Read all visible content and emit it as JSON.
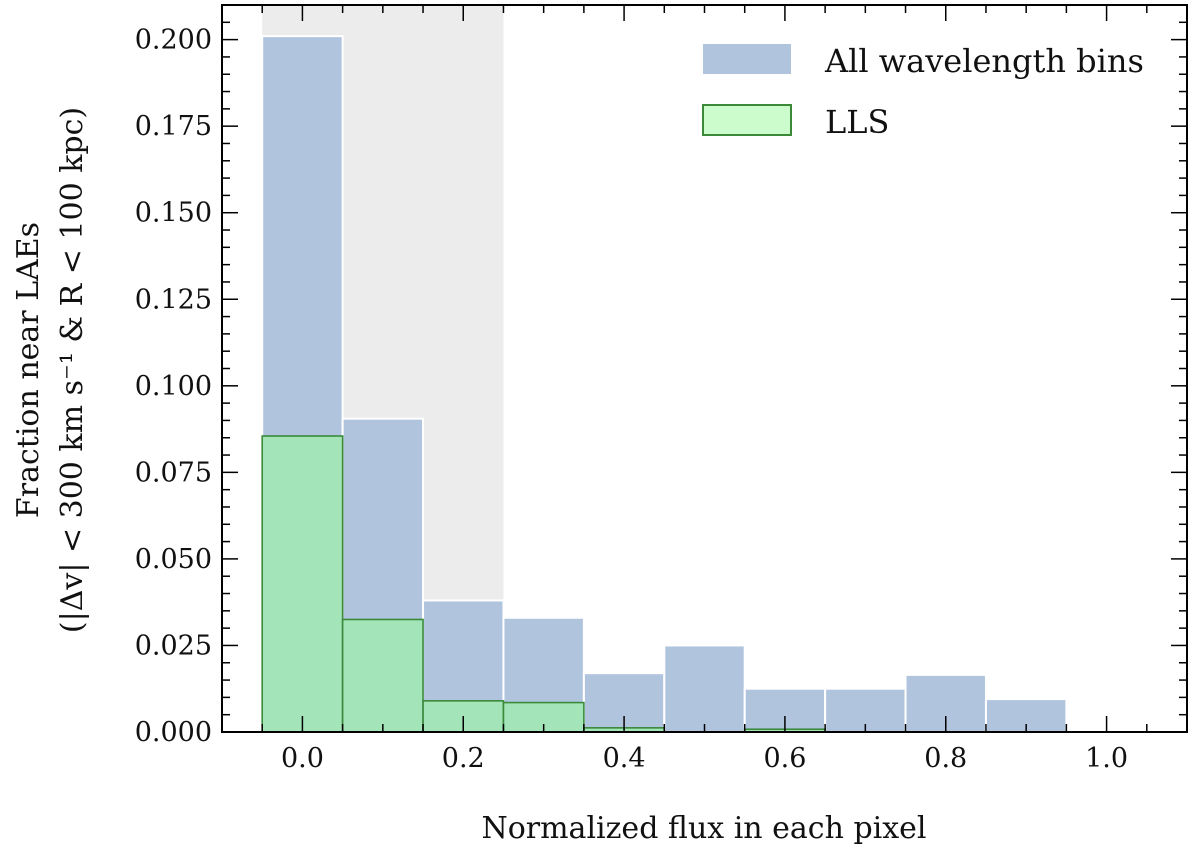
{
  "chart_data": {
    "type": "bar",
    "xlabel": "Normalized flux in each pixel",
    "ylabel_line1": "Fraction near LAEs",
    "ylabel_line2": "(|Δv| < 300 km s⁻¹ & R < 100 kpc)",
    "xlim": [
      -0.1,
      1.1
    ],
    "ylim": [
      0,
      0.21
    ],
    "x_ticks": [
      "0.0",
      "0.2",
      "0.4",
      "0.6",
      "0.8",
      "1.0"
    ],
    "y_ticks": [
      "0.000",
      "0.025",
      "0.050",
      "0.075",
      "0.100",
      "0.125",
      "0.150",
      "0.175",
      "0.200"
    ],
    "shaded_region": {
      "x_from": -0.05,
      "x_to": 0.25,
      "color": "#ececec"
    },
    "bin_edges": [
      -0.05,
      0.05,
      0.15,
      0.25,
      0.35,
      0.45,
      0.55,
      0.65,
      0.75,
      0.85,
      0.95
    ],
    "series": [
      {
        "name": "All wavelength bins",
        "values": [
          0.201,
          0.0905,
          0.038,
          0.033,
          0.017,
          0.025,
          0.0125,
          0.0125,
          0.0165,
          0.0095
        ],
        "fill": "#b0c4de",
        "stroke": "#ffffff"
      },
      {
        "name": "LLS",
        "values": [
          0.0855,
          0.0325,
          0.009,
          0.0085,
          0.0012,
          0,
          0.0008,
          0,
          0,
          0
        ],
        "fill": "#a3e4b9",
        "stroke": "#3a8a3a"
      }
    ],
    "legend": {
      "position": "top-right",
      "entries": [
        "All wavelength bins",
        "LLS"
      ],
      "swatch_fills": [
        "#b0c4de",
        "#ccfccb"
      ]
    },
    "grid": false
  }
}
